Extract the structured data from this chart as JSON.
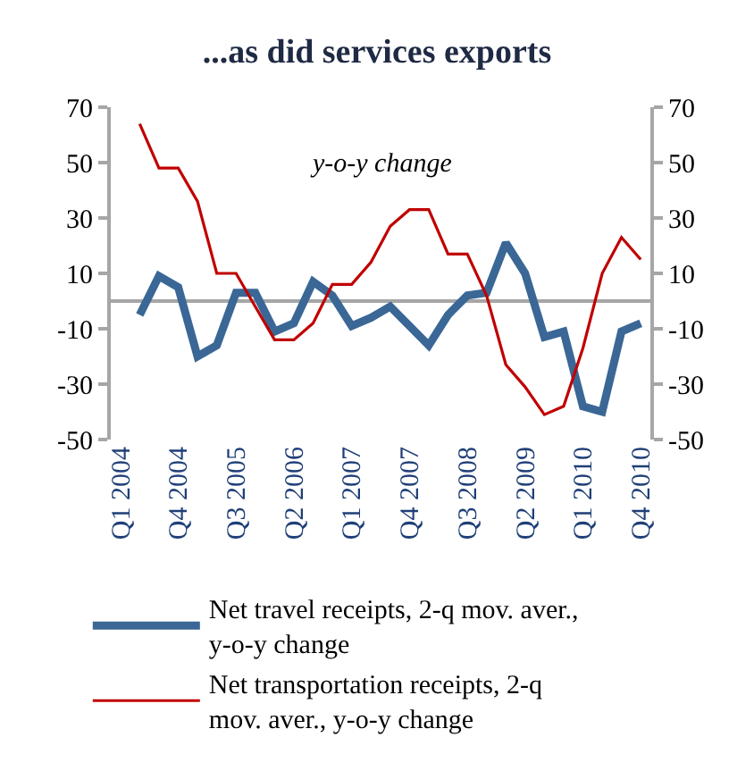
{
  "chart_data": {
    "type": "line",
    "title": "...as did services exports",
    "annotations": [
      "y-o-y change"
    ],
    "categories": [
      "Q1 2004",
      null,
      null,
      "Q4 2004",
      null,
      null,
      "Q3 2005",
      null,
      null,
      "Q2 2006",
      null,
      null,
      "Q1 2007",
      null,
      null,
      "Q4 2007",
      null,
      null,
      "Q3 2008",
      null,
      null,
      "Q2 2009",
      null,
      null,
      "Q1 2010",
      null,
      null,
      "Q4 2010"
    ],
    "series": [
      {
        "name": "Net travel receipts, 2-q mov. aver., y-o-y change",
        "color": "#3a6796",
        "values": [
          null,
          -5,
          9,
          5,
          -20,
          -16,
          3,
          3,
          -11,
          -8,
          7,
          2,
          -9,
          -6,
          -2,
          -9,
          -16,
          -5,
          2,
          3,
          21,
          10,
          -13,
          -11,
          -38,
          -40,
          -11,
          -8
        ]
      },
      {
        "name": "Net transportation receipts, 2-q mov. aver., y-o-y change",
        "color": "#c00000",
        "values": [
          null,
          64,
          48,
          48,
          36,
          10,
          10,
          -2,
          -14,
          -14,
          -8,
          6,
          6,
          14,
          27,
          33,
          33,
          17,
          17,
          2,
          -23,
          -31,
          -41,
          -38,
          -17,
          10,
          23,
          15
        ]
      }
    ],
    "ylim": [
      -50,
      70
    ],
    "yticks": [
      -50,
      -30,
      -10,
      10,
      30,
      50,
      70
    ],
    "y2lim": [
      -50,
      70
    ],
    "y2ticks": [
      -50,
      -30,
      -10,
      10,
      30,
      50,
      70
    ],
    "ref_lines": [
      {
        "axis": "y",
        "value": 0,
        "color": "#a6a6a6"
      }
    ],
    "legend": "bottom",
    "grid": false
  }
}
